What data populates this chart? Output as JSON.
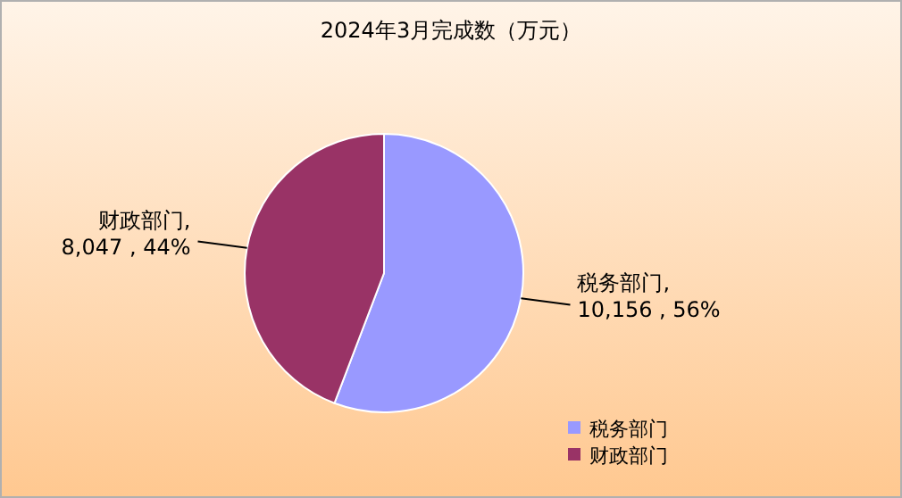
{
  "chart_data": {
    "type": "pie",
    "title": "2024年3月完成数（万元）",
    "categories": [
      "税务部门",
      "财政部门"
    ],
    "values": [
      10156,
      8047
    ],
    "colors": [
      "#9999ff",
      "#993366"
    ],
    "value_labels": [
      "税务部门, 10,156 , 56%",
      "财政部门, 8,047 , 44%"
    ],
    "legend": "bottom right"
  }
}
